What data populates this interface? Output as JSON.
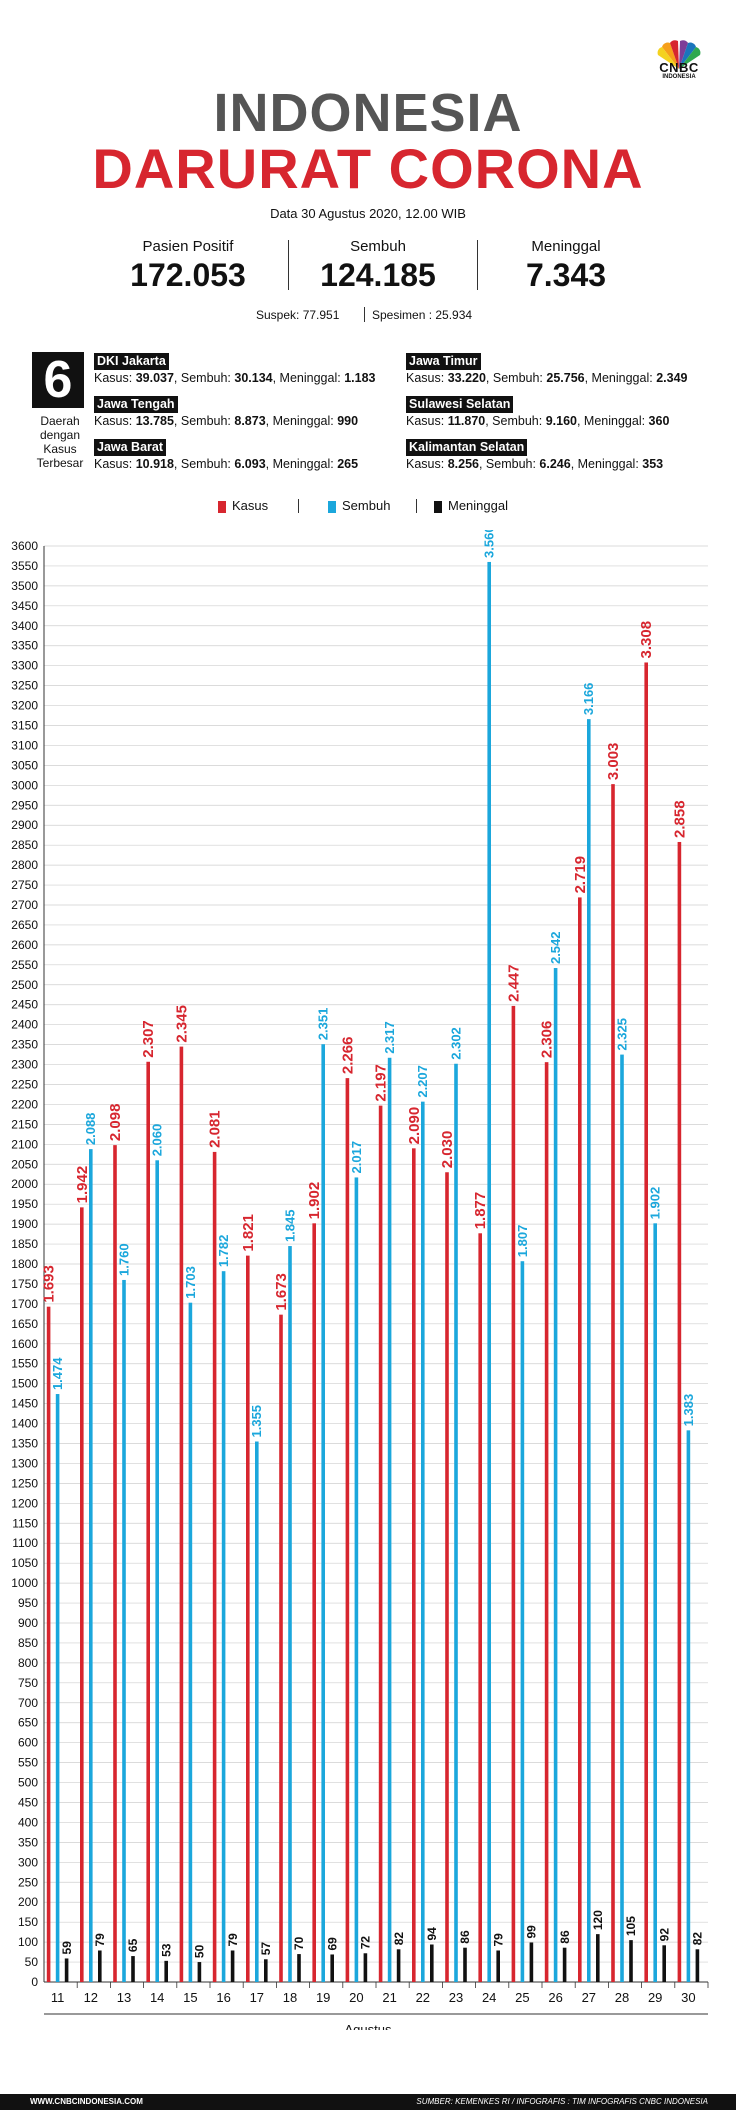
{
  "brand": {
    "logo_text": "CNBC",
    "logo_sub": "INDONESIA"
  },
  "header": {
    "title_line1": "INDONESIA",
    "title_line2": "DARURAT CORONA",
    "date": "Data 30 Agustus 2020, 12.00 WIB"
  },
  "stats": [
    {
      "label": "Pasien Positif",
      "value": "172.053"
    },
    {
      "label": "Sembuh",
      "value": "124.185"
    },
    {
      "label": "Meninggal",
      "value": "7.343"
    }
  ],
  "sub_stats": {
    "suspek": "Suspek: 77.951",
    "spesimen": "Spesimen : 25.934"
  },
  "regions_box": {
    "number": "6",
    "label": "Daerah dengan Kasus Terbesar",
    "regions": [
      {
        "name": "DKI Jakarta",
        "kasus": "39.037",
        "sembuh": "30.134",
        "meninggal": "1.183"
      },
      {
        "name": "Jawa Tengah",
        "kasus": "13.785",
        "sembuh": "8.873",
        "meninggal": "990"
      },
      {
        "name": "Jawa Barat",
        "kasus": "10.918",
        "sembuh": "6.093",
        "meninggal": "265"
      },
      {
        "name": "Jawa Timur",
        "kasus": "33.220",
        "sembuh": "25.756",
        "meninggal": "2.349"
      },
      {
        "name": "Sulawesi Selatan",
        "kasus": "11.870",
        "sembuh": "9.160",
        "meninggal": "360"
      },
      {
        "name": "Kalimantan Selatan",
        "kasus": "8.256",
        "sembuh": "6.246",
        "meninggal": "353"
      }
    ],
    "kasus_prefix": "Kasus:",
    "sembuh_prefix": "Sembuh:",
    "meninggal_prefix": "Meninggal:"
  },
  "colors": {
    "kasus": "#d7262f",
    "sembuh": "#1ba7dc",
    "meninggal": "#111111"
  },
  "chart_data": {
    "type": "bar",
    "xlabel": "Agustus",
    "ylim": [
      0,
      3600
    ],
    "ytick_step": 50,
    "grid": true,
    "legend_placement": "top-center",
    "categories": [
      "11",
      "12",
      "13",
      "14",
      "15",
      "16",
      "17",
      "18",
      "19",
      "20",
      "21",
      "22",
      "23",
      "24",
      "25",
      "26",
      "27",
      "28",
      "29",
      "30"
    ],
    "series": [
      {
        "name": "Kasus",
        "values": [
          1693,
          1942,
          2098,
          2307,
          2345,
          2081,
          1821,
          1673,
          1902,
          2266,
          2197,
          2090,
          2030,
          1877,
          2447,
          2306,
          2719,
          3003,
          3308,
          2858
        ],
        "labels": [
          "1.693",
          "1.942",
          "2.098",
          "2.307",
          "2.345",
          "2.081",
          "1.821",
          "1.673",
          "1.902",
          "2.266",
          "2.197",
          "2.090",
          "2.030",
          "1.877",
          "2.447",
          "2.306",
          "2.719",
          "3.003",
          "3.308",
          "2.858"
        ]
      },
      {
        "name": "Sembuh",
        "values": [
          1474,
          2088,
          1760,
          2060,
          1703,
          1782,
          1355,
          1845,
          2351,
          2017,
          2317,
          2207,
          2302,
          3560,
          1807,
          2542,
          3166,
          2325,
          1902,
          1383
        ],
        "labels": [
          "1.474",
          "2.088",
          "1.760",
          "2.060",
          "1.703",
          "1.782",
          "1.355",
          "1.845",
          "2.351",
          "2.017",
          "2.317",
          "2.207",
          "2.302",
          "3.560",
          "1.807",
          "2.542",
          "3.166",
          "2.325",
          "1.902",
          "1.383"
        ]
      },
      {
        "name": "Meninggal",
        "values": [
          59,
          79,
          65,
          53,
          50,
          79,
          57,
          70,
          69,
          72,
          82,
          94,
          86,
          79,
          99,
          86,
          120,
          105,
          92,
          82
        ],
        "labels": [
          "59",
          "79",
          "65",
          "53",
          "50",
          "79",
          "57",
          "70",
          "69",
          "72",
          "82",
          "94",
          "86",
          "79",
          "99",
          "86",
          "120",
          "105",
          "92",
          "82"
        ]
      }
    ]
  },
  "footer": {
    "left": "WWW.CNBCINDONESIA.COM",
    "right": "SUMBER: KEMENKES RI / INFOGRAFIS : TIM INFOGRAFIS CNBC INDONESIA"
  }
}
